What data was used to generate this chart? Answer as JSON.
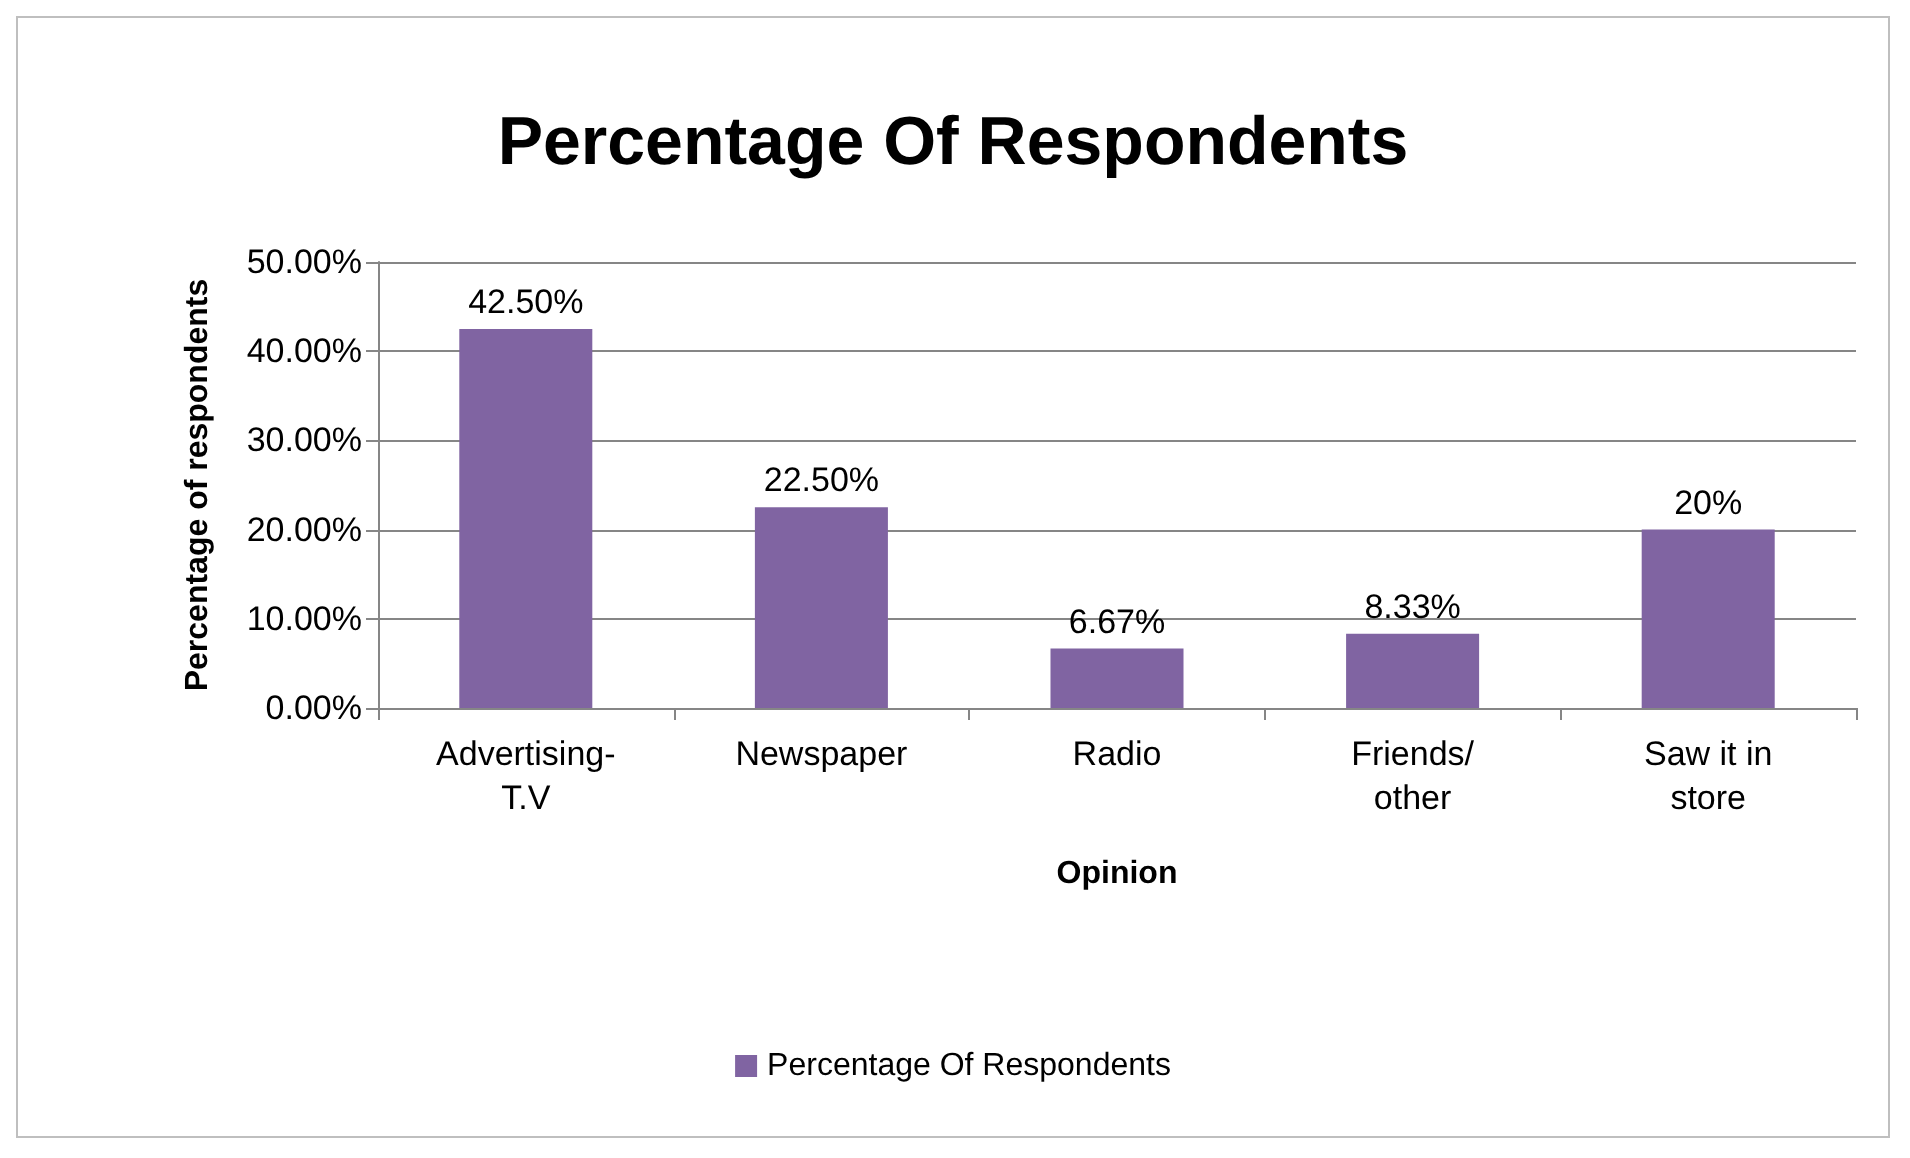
{
  "chart_data": {
    "type": "bar",
    "title": "Percentage Of Respondents",
    "xlabel": "Opinion",
    "ylabel": "Percentage of respondents",
    "categories": [
      "Advertising-\nT.V",
      "Newspaper",
      "Radio",
      "Friends/\nother",
      "Saw it in\nstore"
    ],
    "series": [
      {
        "name": "Percentage Of Respondents",
        "color": "#8064a2",
        "values": [
          42.5,
          22.5,
          6.67,
          8.33,
          20
        ],
        "value_labels": [
          "42.50%",
          "22.50%",
          "6.67%",
          "8.33%",
          "20%"
        ]
      }
    ],
    "ylim": [
      0,
      50
    ],
    "yticks": [
      {
        "value": 0,
        "label": "0.00%"
      },
      {
        "value": 10,
        "label": "10.00%"
      },
      {
        "value": 20,
        "label": "20.00%"
      },
      {
        "value": 30,
        "label": "30.00%"
      },
      {
        "value": 40,
        "label": "40.00%"
      },
      {
        "value": 50,
        "label": "50.00%"
      }
    ],
    "grid": "y",
    "legend": "bottom"
  }
}
